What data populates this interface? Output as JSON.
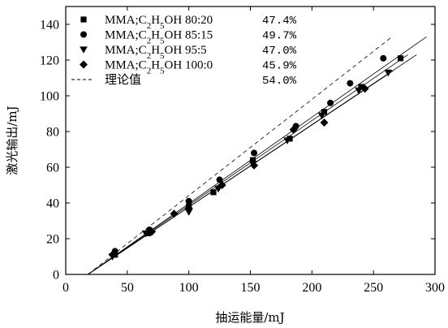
{
  "chart_data": {
    "type": "scatter",
    "xlabel": "抽运能量/mJ",
    "ylabel": "激光输出/mJ",
    "xlim": [
      0,
      300
    ],
    "ylim": [
      0,
      150
    ],
    "x_ticks": [
      "0",
      "50",
      "100",
      "150",
      "200",
      "250",
      "300"
    ],
    "y_ticks": [
      "0",
      "20",
      "40",
      "60",
      "80",
      "100",
      "120",
      "140"
    ],
    "grid": false,
    "legend_position": "top-left",
    "legend": [
      {
        "marker": "square",
        "label_html": "MMA;C<tspan baseline-shift=\"sub\" font-size=\"11\">2</tspan>H<tspan baseline-shift=\"sub\" font-size=\"11\">5</tspan>OH 80:20",
        "pct": "47.4%"
      },
      {
        "marker": "circle",
        "label_html": "MMA;C<tspan baseline-shift=\"sub\" font-size=\"11\">2</tspan>H<tspan baseline-shift=\"sub\" font-size=\"11\">5</tspan>OH 85:15",
        "pct": "49.7%"
      },
      {
        "marker": "triangle-down",
        "label_html": "MMA;C<tspan baseline-shift=\"sub\" font-size=\"11\">2</tspan>H<tspan baseline-shift=\"sub\" font-size=\"11\">5</tspan>OH 95:5",
        "pct": "47.0%"
      },
      {
        "marker": "diamond",
        "label_html": "MMA;C<tspan baseline-shift=\"sub\" font-size=\"11\">2</tspan>H<tspan baseline-shift=\"sub\" font-size=\"11\">5</tspan>OH 100:0",
        "pct": "45.9%"
      },
      {
        "marker": "dashed-line",
        "label_html": "理论值",
        "pct": "54.0%"
      }
    ],
    "series": [
      {
        "marker": "square",
        "x": [
          40,
          67,
          100,
          120,
          152,
          182,
          210,
          240,
          272
        ],
        "y": [
          11,
          23,
          38,
          46,
          64,
          76,
          91,
          105,
          121
        ],
        "fit": {
          "x": [
            18,
            278
          ],
          "y": [
            0,
            123
          ]
        }
      },
      {
        "marker": "circle",
        "x": [
          40,
          68,
          100,
          125,
          153,
          187,
          215,
          231,
          258
        ],
        "y": [
          13,
          25,
          41,
          53,
          68,
          83,
          96,
          107,
          121
        ],
        "fit": {
          "x": [
            18,
            293
          ],
          "y": [
            0,
            133
          ]
        }
      },
      {
        "marker": "triangle-down",
        "x": [
          38,
          65,
          100,
          124,
          152,
          180,
          208,
          238,
          262
        ],
        "y": [
          10,
          23,
          35,
          48,
          62,
          75,
          89,
          103,
          113
        ],
        "fit": {
          "x": [
            18,
            266
          ],
          "y": [
            0,
            114
          ]
        }
      },
      {
        "marker": "diamond",
        "x": [
          38,
          70,
          88,
          100,
          127,
          153,
          185,
          210,
          243
        ],
        "y": [
          11,
          24,
          34,
          37,
          50,
          61,
          81,
          85,
          104
        ],
        "fit": {
          "x": [
            18,
            285
          ],
          "y": [
            0,
            123
          ]
        }
      },
      {
        "marker": "none",
        "dashed": true,
        "fit": {
          "x": [
            18,
            265
          ],
          "y": [
            0,
            133
          ]
        }
      }
    ]
  }
}
